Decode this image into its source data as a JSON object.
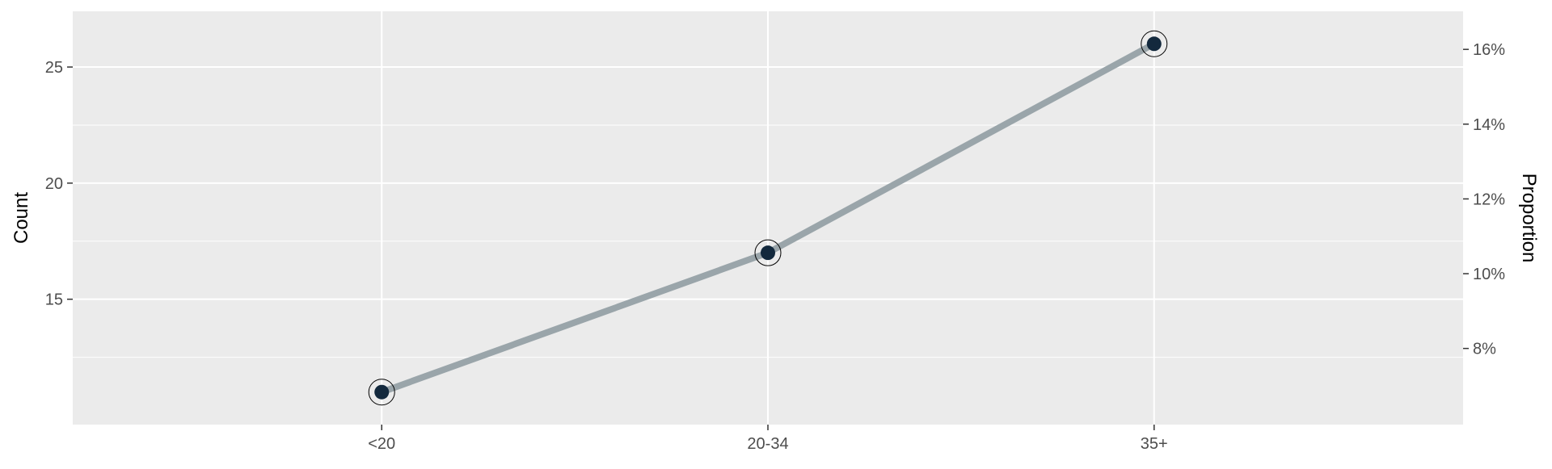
{
  "chart_data": {
    "type": "line",
    "categories": [
      "<20",
      "20-34",
      "35+"
    ],
    "series": [
      {
        "values": [
          11,
          17,
          26
        ]
      }
    ],
    "ylabel": "Count",
    "ylabel_right": "Proportion",
    "ylim": [
      9.6,
      27.4
    ],
    "yticks": [
      15,
      20,
      25
    ],
    "y2ticks": [
      {
        "value": 0.08,
        "label": "8%"
      },
      {
        "value": 0.1,
        "label": "10%"
      },
      {
        "value": 0.12,
        "label": "12%"
      },
      {
        "value": 0.14,
        "label": "14%"
      },
      {
        "value": 0.16,
        "label": "16%"
      }
    ],
    "y2_scale_total": 161,
    "grid": true,
    "legend": "none",
    "colors": {
      "panel": "#ebebeb",
      "grid": "#ffffff",
      "line": "#9aa5aa",
      "point": "#13293d",
      "ring": "#000000",
      "tick_text": "#4d4d4d",
      "tick_mark": "#333333"
    }
  }
}
